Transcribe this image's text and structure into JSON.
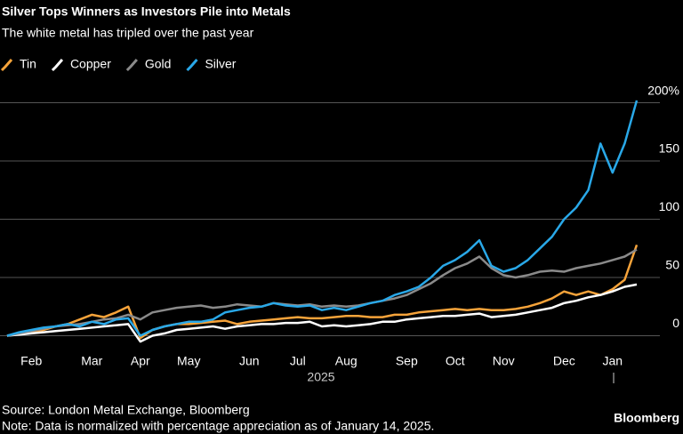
{
  "chart_data": {
    "type": "line",
    "title": "Silver Tops Winners as Investors Pile into Metals",
    "subtitle": "The white metal has tripled over the past year",
    "categories": [
      null,
      null,
      "Feb",
      null,
      null,
      null,
      null,
      "Mar",
      null,
      null,
      null,
      "Apr",
      null,
      null,
      null,
      "May",
      null,
      null,
      null,
      null,
      "Jun",
      null,
      null,
      null,
      "Jul",
      null,
      null,
      null,
      "Aug",
      null,
      null,
      null,
      null,
      "Sep",
      null,
      null,
      null,
      "Oct",
      null,
      null,
      null,
      "Nov",
      null,
      null,
      null,
      null,
      "Dec",
      null,
      null,
      null,
      "Jan",
      null,
      null
    ],
    "year_label": "2025",
    "series": [
      {
        "name": "Tin",
        "color": "#f6a33a",
        "values": [
          0,
          2,
          3,
          5,
          8,
          10,
          14,
          18,
          16,
          20,
          25,
          -2,
          5,
          8,
          10,
          10,
          11,
          12,
          13,
          10,
          12,
          13,
          14,
          15,
          16,
          15,
          15,
          16,
          17,
          17,
          16,
          16,
          18,
          18,
          20,
          21,
          22,
          23,
          22,
          23,
          22,
          22,
          23,
          25,
          28,
          32,
          38,
          35,
          38,
          35,
          40,
          48,
          78
        ]
      },
      {
        "name": "Copper",
        "color": "#ffffff",
        "values": [
          0,
          1,
          2,
          3,
          4,
          5,
          6,
          7,
          8,
          9,
          10,
          -5,
          0,
          2,
          5,
          6,
          7,
          8,
          6,
          8,
          9,
          10,
          10,
          11,
          11,
          12,
          8,
          9,
          8,
          9,
          10,
          12,
          12,
          14,
          15,
          16,
          17,
          17,
          18,
          19,
          16,
          17,
          18,
          20,
          22,
          24,
          28,
          30,
          33,
          35,
          38,
          42,
          44
        ]
      },
      {
        "name": "Gold",
        "color": "#8a8a8a",
        "values": [
          0,
          2,
          4,
          6,
          8,
          9,
          10,
          12,
          14,
          15,
          18,
          14,
          20,
          22,
          24,
          25,
          26,
          24,
          25,
          27,
          26,
          25,
          28,
          27,
          26,
          27,
          25,
          26,
          25,
          26,
          28,
          30,
          32,
          35,
          40,
          45,
          52,
          58,
          62,
          68,
          58,
          52,
          50,
          52,
          55,
          56,
          55,
          58,
          60,
          62,
          65,
          68,
          74
        ]
      },
      {
        "name": "Silver",
        "color": "#29a8e8",
        "values": [
          0,
          3,
          5,
          7,
          8,
          10,
          8,
          12,
          10,
          14,
          15,
          0,
          5,
          8,
          10,
          12,
          12,
          14,
          20,
          22,
          24,
          25,
          28,
          26,
          25,
          26,
          22,
          24,
          22,
          25,
          28,
          30,
          35,
          38,
          42,
          50,
          60,
          65,
          72,
          82,
          60,
          55,
          58,
          65,
          75,
          85,
          100,
          110,
          125,
          165,
          140,
          165,
          202
        ]
      }
    ],
    "ylim": [
      -8,
      205
    ],
    "yticks": [
      0,
      50,
      100,
      150,
      {
        "value": 200,
        "label": "200%"
      }
    ],
    "grid": true,
    "source": "Source: London Metal Exchange, Bloomberg",
    "note": "Note: Data is normalized with percentage appreciation as of January 14, 2025.",
    "brand": "Bloomberg"
  }
}
